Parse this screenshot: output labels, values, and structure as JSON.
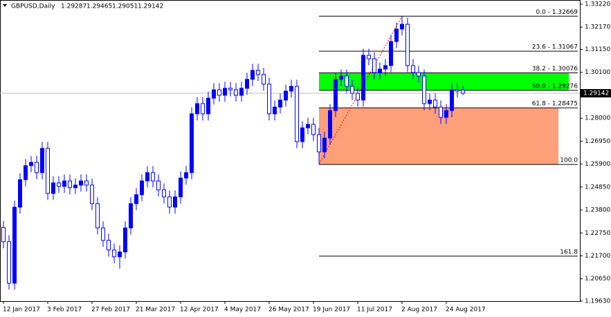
{
  "chart_data": {
    "type": "candlestick",
    "title": "GBPUSD,Daily",
    "header_values": [
      1.29287,
      1.29465,
      1.29051,
      1.29142
    ],
    "last_price": 1.29142,
    "bull_color": "#0000ff",
    "bear_color": "#ffffff",
    "wick_color": "#0000ff",
    "categories": [
      "12 Jan 2017",
      null,
      null,
      null,
      null,
      null,
      null,
      null,
      "3 Feb 2017",
      null,
      null,
      null,
      null,
      null,
      null,
      null,
      "27 Feb 2017",
      null,
      null,
      null,
      null,
      null,
      null,
      null,
      "21 Mar 2017",
      null,
      null,
      null,
      null,
      null,
      null,
      null,
      "12 Apr 2017",
      null,
      null,
      null,
      null,
      null,
      null,
      null,
      "4 May 2017",
      null,
      null,
      null,
      null,
      null,
      null,
      null,
      "26 May 2017",
      null,
      null,
      null,
      null,
      null,
      null,
      null,
      "19 Jun 2017",
      null,
      null,
      null,
      null,
      null,
      null,
      null,
      "11 Jul 2017",
      null,
      null,
      null,
      null,
      null,
      null,
      null,
      "2 Aug 2017",
      null,
      null,
      null,
      null,
      null,
      null,
      null,
      "24 Aug 2017",
      null,
      null,
      null
    ],
    "open": [
      1.23,
      1.2235,
      1.2045,
      1.2393,
      1.2519,
      1.2583,
      1.2598,
      1.2551,
      1.2662,
      1.2456,
      1.2504,
      1.2488,
      1.2513,
      1.2482,
      1.2494,
      1.2513,
      1.2494,
      1.2409,
      1.2298,
      1.2241,
      1.2197,
      1.2166,
      1.2188,
      1.2298,
      1.2409,
      1.245,
      1.2513,
      1.2551,
      1.2513,
      1.2472,
      1.244,
      1.2393,
      1.244,
      1.2526,
      1.2551,
      1.282,
      1.2867,
      1.282,
      1.2892,
      1.293,
      1.2905,
      1.2937,
      1.293,
      1.2905,
      1.2937,
      1.2978,
      1.3019,
      1.3,
      1.2956,
      1.282,
      1.2851,
      1.2883,
      1.2924,
      1.2946,
      1.2693,
      1.2756,
      1.2772,
      1.2725,
      1.2646,
      1.2709,
      1.2835,
      1.2978,
      1.2993,
      1.2946,
      1.2914,
      1.2883,
      1.3088,
      1.3072,
      1.3009,
      1.3025,
      1.3041,
      1.3151,
      1.3208,
      1.323,
      1.3041,
      1.3009,
      1.2993,
      1.2867,
      1.2883,
      1.2851,
      1.2804,
      1.2835,
      1.293,
      1.29287
    ],
    "high": [
      1.233,
      1.2265,
      1.2423,
      1.2549,
      1.2613,
      1.2628,
      1.2628,
      1.2692,
      1.2692,
      1.2534,
      1.2534,
      1.2543,
      1.2543,
      1.2524,
      1.2543,
      1.2543,
      1.2524,
      1.2439,
      1.2328,
      1.2271,
      1.2227,
      1.2218,
      1.2328,
      1.2439,
      1.248,
      1.2543,
      1.2581,
      1.2581,
      1.2543,
      1.2502,
      1.247,
      1.247,
      1.2556,
      1.2581,
      1.285,
      1.2897,
      1.2897,
      1.2922,
      1.296,
      1.296,
      1.2967,
      1.2967,
      1.296,
      1.2967,
      1.3008,
      1.3049,
      1.3049,
      1.303,
      1.2986,
      1.2881,
      1.2913,
      1.2954,
      1.2976,
      1.2976,
      1.2786,
      1.2802,
      1.2802,
      1.2755,
      1.2739,
      1.2865,
      1.3008,
      1.3023,
      1.3023,
      1.2976,
      1.2944,
      1.3118,
      1.3118,
      1.3102,
      1.3055,
      1.3071,
      1.3181,
      1.3238,
      1.3267,
      1.326,
      1.3071,
      1.3039,
      1.3023,
      1.2913,
      1.2913,
      1.2881,
      1.2865,
      1.296,
      1.296,
      1.29465
    ],
    "low": [
      1.2205,
      1.2016,
      1.2015,
      1.2363,
      1.2489,
      1.2553,
      1.2521,
      1.2521,
      1.2426,
      1.2426,
      1.2458,
      1.2458,
      1.2452,
      1.2452,
      1.2464,
      1.2464,
      1.2379,
      1.2268,
      1.2211,
      1.2167,
      1.2136,
      1.2112,
      1.2158,
      1.2268,
      1.2379,
      1.242,
      1.2483,
      1.2483,
      1.2442,
      1.241,
      1.2363,
      1.2363,
      1.241,
      1.2496,
      1.2521,
      1.279,
      1.279,
      1.279,
      1.2862,
      1.2875,
      1.2875,
      1.29,
      1.2875,
      1.2875,
      1.2907,
      1.2948,
      1.297,
      1.2926,
      1.279,
      1.279,
      1.2821,
      1.2853,
      1.2894,
      1.2663,
      1.2663,
      1.2726,
      1.2695,
      1.259,
      1.2616,
      1.2679,
      1.2805,
      1.2948,
      1.2916,
      1.2884,
      1.2853,
      1.2853,
      1.3042,
      1.2979,
      1.2979,
      1.2995,
      1.3011,
      1.3121,
      1.3178,
      1.3011,
      1.2979,
      1.2963,
      1.2837,
      1.2837,
      1.2821,
      1.2774,
      1.2774,
      1.2805,
      1.2894,
      1.29051
    ],
    "close": [
      1.2235,
      1.2045,
      1.2393,
      1.2519,
      1.2583,
      1.2598,
      1.2551,
      1.2662,
      1.2456,
      1.2504,
      1.2488,
      1.2513,
      1.2482,
      1.2494,
      1.2513,
      1.2494,
      1.2409,
      1.2298,
      1.2241,
      1.2197,
      1.2166,
      1.2188,
      1.2298,
      1.2409,
      1.245,
      1.2513,
      1.2551,
      1.2513,
      1.2472,
      1.244,
      1.2393,
      1.244,
      1.2526,
      1.2551,
      1.282,
      1.2867,
      1.282,
      1.2892,
      1.293,
      1.2905,
      1.2937,
      1.293,
      1.2905,
      1.2937,
      1.2978,
      1.3019,
      1.3,
      1.2956,
      1.282,
      1.2851,
      1.2883,
      1.2924,
      1.2946,
      1.2693,
      1.2756,
      1.2772,
      1.2725,
      1.2646,
      1.2709,
      1.2835,
      1.2978,
      1.2993,
      1.2946,
      1.2914,
      1.2883,
      1.3088,
      1.3072,
      1.3009,
      1.3025,
      1.3041,
      1.3151,
      1.3208,
      1.323,
      1.3041,
      1.3009,
      1.2993,
      1.2867,
      1.2883,
      1.2851,
      1.2804,
      1.2835,
      1.293,
      1.2924,
      1.29142
    ],
    "ylim": [
      1.1963,
      1.3322
    ],
    "yticks": [
      {
        "value": 1.3322,
        "label": "1.33220"
      },
      {
        "value": 1.3217,
        "label": "1.32170"
      },
      {
        "value": 1.3115,
        "label": "1.31150"
      },
      {
        "value": 1.301,
        "label": "1.30100"
      },
      {
        "value": 1.2905,
        "label": "1.29050"
      },
      {
        "value": 1.28,
        "label": "1.28000"
      },
      {
        "value": 1.2695,
        "label": "1.26950"
      },
      {
        "value": 1.259,
        "label": "1.25900"
      },
      {
        "value": 1.2485,
        "label": "1.24850"
      },
      {
        "value": 1.238,
        "label": "1.23800"
      },
      {
        "value": 1.2275,
        "label": "1.22750"
      },
      {
        "value": 1.217,
        "label": "1.21700"
      },
      {
        "value": 1.2065,
        "label": "1.20650"
      },
      {
        "value": 1.1963,
        "label": "1.19630"
      }
    ],
    "fib_levels": [
      {
        "label": "0.0 - 1.32669",
        "value": 1.32669
      },
      {
        "label": "23.6 - 1.31067",
        "value": 1.31067
      },
      {
        "label": "38.2 - 1.30076",
        "value": 1.30076
      },
      {
        "label": "50.0 - 1.29276",
        "value": 1.29276
      },
      {
        "label": "61.8 - 1.28475",
        "value": 1.28475
      },
      {
        "label": "100.0",
        "value": 1.25883
      },
      {
        "label": "161.8",
        "value": 1.21689
      }
    ],
    "fib_color": "#000000",
    "fib_anchor_color": "#ff0000",
    "zones": [
      {
        "from": 1.30076,
        "to": 1.29276,
        "color": "#00ff00"
      },
      {
        "from": 1.28475,
        "to": 1.25883,
        "color": "#ffa07a"
      }
    ]
  }
}
